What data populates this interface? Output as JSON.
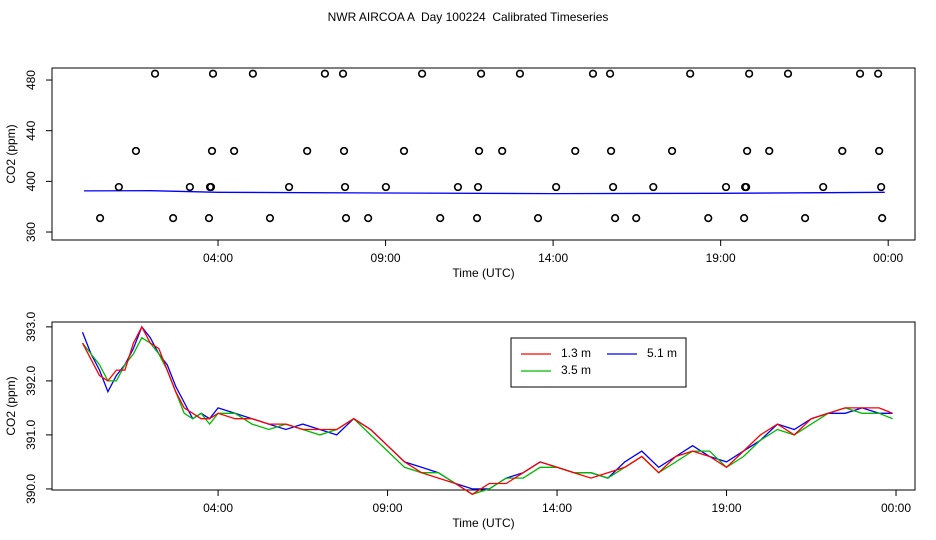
{
  "title": "NWR AIRCOA A  Day 100224  Calibrated Timeseries",
  "chart_data": [
    {
      "type": "scatter",
      "xlabel": "Time (UTC)",
      "ylabel": "CO2 (ppm)",
      "xlim": [
        -0.955,
        24.8
      ],
      "ylim": [
        353.7,
        489.5
      ],
      "xticks": [
        {
          "value": 4,
          "label": "04:00"
        },
        {
          "value": 9,
          "label": "09:00"
        },
        {
          "value": 14,
          "label": "14:00"
        },
        {
          "value": 19,
          "label": "19:00"
        },
        {
          "value": 24,
          "label": "00:00"
        }
      ],
      "yticks": [
        360,
        400,
        440,
        480
      ],
      "series": [
        {
          "type": "scatter",
          "color": "#000000",
          "x": [
            2.12,
            3.85,
            5.04,
            7.19,
            7.73,
            10.09,
            11.85,
            13.01,
            15.19,
            15.7,
            18.09,
            19.85,
            21.01,
            23.16,
            23.7,
            1.55,
            3.82,
            4.48,
            6.66,
            7.76,
            9.55,
            11.79,
            12.48,
            14.66,
            15.73,
            17.55,
            19.79,
            20.45,
            22.63,
            23.73,
            1.04,
            3.16,
            3.76,
            3.79,
            6.12,
            7.79,
            9.01,
            11.16,
            11.76,
            14.09,
            15.79,
            16.99,
            19.16,
            19.73,
            19.76,
            22.06,
            23.79,
            0.48,
            2.66,
            3.73,
            5.55,
            7.82,
            8.48,
            10.63,
            11.73,
            13.55,
            15.85,
            16.48,
            18.63,
            19.7,
            21.52,
            23.82
          ],
          "values": [
            485,
            485,
            485,
            485,
            485,
            485,
            485,
            485,
            485,
            485,
            485,
            485,
            485,
            485,
            485,
            424,
            424,
            424,
            424,
            424,
            424,
            424,
            424,
            424,
            424,
            424,
            424,
            424,
            424,
            424,
            395.5,
            395.5,
            395.5,
            395.5,
            395.5,
            395.5,
            395.5,
            395.5,
            395.5,
            395.5,
            395.5,
            395.5,
            395.5,
            395.5,
            395.5,
            395.5,
            395.5,
            371,
            371,
            371,
            371,
            371,
            371,
            371,
            371,
            371,
            371,
            371,
            371,
            371,
            371,
            371
          ]
        },
        {
          "type": "line",
          "color": "#0000ff",
          "x": [
            0,
            2,
            4,
            9,
            14,
            19,
            23.9
          ],
          "values": [
            392.5,
            392.6,
            391.4,
            390.8,
            390.3,
            390.6,
            391.4
          ]
        }
      ]
    },
    {
      "type": "line",
      "xlabel": "Time (UTC)",
      "ylabel": "CO2 (ppm)",
      "xlim": [
        -0.9,
        24.56
      ],
      "ylim": [
        389.98,
        393.09
      ],
      "xticks": [
        {
          "value": 4,
          "label": "04:00"
        },
        {
          "value": 9,
          "label": "09:00"
        },
        {
          "value": 14,
          "label": "14:00"
        },
        {
          "value": 19,
          "label": "19:00"
        },
        {
          "value": 24,
          "label": "00:00"
        }
      ],
      "yticks": [
        {
          "value": 390,
          "label": "390.0"
        },
        {
          "value": 391,
          "label": "391.0"
        },
        {
          "value": 392,
          "label": "392.0"
        },
        {
          "value": 393,
          "label": "393.0"
        }
      ],
      "legend": "top",
      "x": [
        0,
        0.25,
        0.5,
        0.75,
        1,
        1.25,
        1.5,
        1.75,
        2,
        2.25,
        2.5,
        2.75,
        3,
        3.25,
        3.5,
        3.75,
        4,
        4.5,
        5,
        5.5,
        6,
        6.5,
        7,
        7.5,
        8,
        8.5,
        9,
        9.5,
        10,
        10.5,
        11,
        11.5,
        12,
        12.5,
        13,
        13.5,
        14,
        14.5,
        15,
        15.5,
        16,
        16.5,
        17,
        17.5,
        18,
        18.5,
        19,
        19.5,
        20,
        20.5,
        21,
        21.5,
        22,
        22.5,
        23,
        23.5,
        23.9
      ],
      "series": [
        {
          "name": "1.3 m",
          "color": "#ff0000",
          "values": [
            392.7,
            392.4,
            392.1,
            392.0,
            392.2,
            392.2,
            392.7,
            393.0,
            392.7,
            392.6,
            392.2,
            391.8,
            391.5,
            391.4,
            391.3,
            391.3,
            391.4,
            391.3,
            391.3,
            391.2,
            391.2,
            391.1,
            391.1,
            391.1,
            391.3,
            391.1,
            390.8,
            390.5,
            390.3,
            390.2,
            390.1,
            389.9,
            390.1,
            390.1,
            390.3,
            390.5,
            390.4,
            390.3,
            390.2,
            390.3,
            390.4,
            390.6,
            390.3,
            390.6,
            390.7,
            390.6,
            390.4,
            390.7,
            391.0,
            391.2,
            391.0,
            391.3,
            391.4,
            391.5,
            391.5,
            391.5,
            391.4
          ]
        },
        {
          "name": "3.5 m",
          "color": "#00bb00",
          "values": [
            392.7,
            392.5,
            392.3,
            392.0,
            392.0,
            392.3,
            392.5,
            392.8,
            392.7,
            392.5,
            392.2,
            391.8,
            391.4,
            391.3,
            391.4,
            391.2,
            391.4,
            391.4,
            391.2,
            391.1,
            391.2,
            391.1,
            391.0,
            391.1,
            391.3,
            391.0,
            390.7,
            390.4,
            390.3,
            390.3,
            390.1,
            389.9,
            390.0,
            390.2,
            390.2,
            390.4,
            390.4,
            390.3,
            390.3,
            390.2,
            390.4,
            390.6,
            390.3,
            390.5,
            390.7,
            390.7,
            390.4,
            390.6,
            390.9,
            391.1,
            391.0,
            391.2,
            391.4,
            391.5,
            391.4,
            391.4,
            391.3
          ]
        },
        {
          "name": "5.1 m",
          "color": "#0000ff",
          "values": [
            392.9,
            392.5,
            392.2,
            391.8,
            392.1,
            392.3,
            392.6,
            393.0,
            392.8,
            392.5,
            392.3,
            391.9,
            391.6,
            391.3,
            391.4,
            391.3,
            391.5,
            391.4,
            391.3,
            391.2,
            391.1,
            391.2,
            391.1,
            391.0,
            391.3,
            391.1,
            390.8,
            390.5,
            390.4,
            390.3,
            390.1,
            390.0,
            390.0,
            390.2,
            390.3,
            390.5,
            390.4,
            390.3,
            390.3,
            390.2,
            390.5,
            390.7,
            390.4,
            390.6,
            390.8,
            390.6,
            390.5,
            390.7,
            390.9,
            391.2,
            391.1,
            391.3,
            391.4,
            391.4,
            391.5,
            391.4,
            391.4
          ]
        }
      ]
    }
  ]
}
